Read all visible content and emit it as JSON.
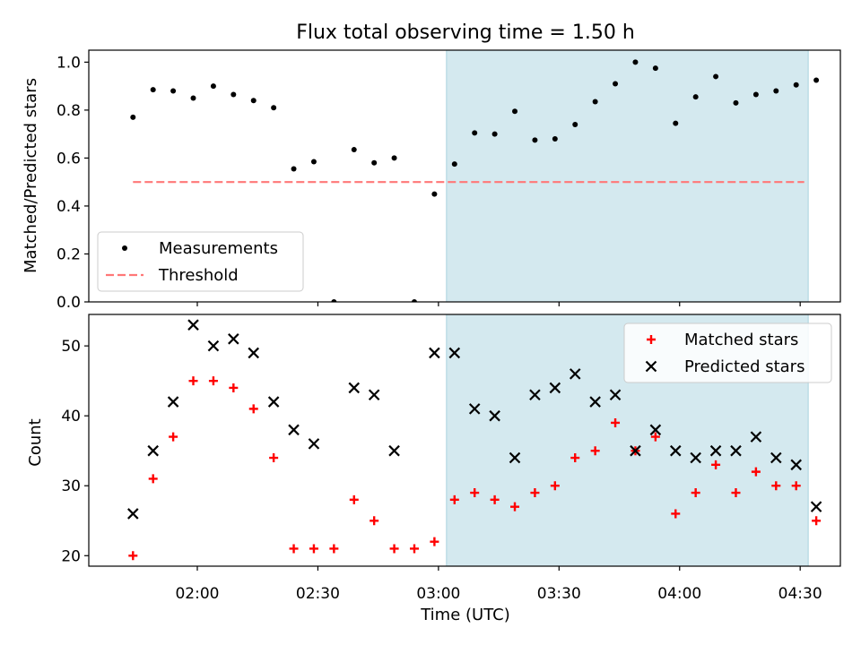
{
  "figure": {
    "title": "Flux total observing time = 1.50 h",
    "xlabel": "Time (UTC)",
    "x_tick_labels": [
      "02:00",
      "02:30",
      "03:00",
      "03:30",
      "04:00",
      "04:30"
    ]
  },
  "colors": {
    "measurement": "#000000",
    "threshold": "#ff7777",
    "matched": "#ff0000",
    "predicted": "#000000",
    "shaded_window": "#d4e9ef"
  },
  "chart_data": [
    {
      "type": "scatter",
      "ylabel": "Matched/Predicted stars",
      "xlim": [
        "01:33",
        "04:40"
      ],
      "ylim": [
        0,
        1.05
      ],
      "y_ticks": [
        "0.0",
        "0.2",
        "0.4",
        "0.6",
        "0.8",
        "1.0"
      ],
      "grid": false,
      "legend_position": "bottom-left",
      "shaded_region": {
        "x_start": "03:02",
        "x_end": "04:32"
      },
      "threshold": {
        "name": "Threshold",
        "value": 0.5,
        "x_start": "01:44",
        "x_end": "04:31"
      },
      "series": [
        {
          "name": "Measurements",
          "marker": "dot",
          "x": [
            "01:44",
            "01:49",
            "01:54",
            "01:59",
            "02:04",
            "02:09",
            "02:14",
            "02:19",
            "02:24",
            "02:29",
            "02:34",
            "02:39",
            "02:44",
            "02:49",
            "02:54",
            "02:59",
            "03:04",
            "03:09",
            "03:14",
            "03:19",
            "03:24",
            "03:29",
            "03:34",
            "03:39",
            "03:44",
            "03:49",
            "03:54",
            "03:59",
            "04:04",
            "04:09",
            "04:14",
            "04:19",
            "04:24",
            "04:29",
            "04:34"
          ],
          "y": [
            0.77,
            0.885,
            0.88,
            0.85,
            0.9,
            0.865,
            0.84,
            0.81,
            0.555,
            0.585,
            0.0,
            0.635,
            0.58,
            0.6,
            0.0,
            0.45,
            0.575,
            0.705,
            0.7,
            0.795,
            0.675,
            0.68,
            0.74,
            0.835,
            0.91,
            1.0,
            0.975,
            0.745,
            0.855,
            0.94,
            0.83,
            0.865,
            0.88,
            0.905,
            0.925
          ]
        }
      ]
    },
    {
      "type": "scatter",
      "ylabel": "Count",
      "xlim": [
        "01:33",
        "04:40"
      ],
      "ylim": [
        18.5,
        54.5
      ],
      "y_ticks": [
        "20",
        "30",
        "40",
        "50"
      ],
      "grid": false,
      "legend_position": "top-right",
      "shaded_region": {
        "x_start": "03:02",
        "x_end": "04:32"
      },
      "series": [
        {
          "name": "Matched stars",
          "marker": "plus",
          "x": [
            "01:44",
            "01:49",
            "01:54",
            "01:59",
            "02:04",
            "02:09",
            "02:14",
            "02:19",
            "02:24",
            "02:29",
            "02:34",
            "02:39",
            "02:44",
            "02:49",
            "02:54",
            "02:59",
            "03:04",
            "03:09",
            "03:14",
            "03:19",
            "03:24",
            "03:29",
            "03:34",
            "03:39",
            "03:44",
            "03:49",
            "03:54",
            "03:59",
            "04:04",
            "04:09",
            "04:14",
            "04:19",
            "04:24",
            "04:29",
            "04:34"
          ],
          "y": [
            20,
            31,
            37,
            45,
            45,
            44,
            41,
            34,
            21,
            21,
            21,
            28,
            25,
            21,
            21,
            22,
            28,
            29,
            28,
            27,
            29,
            30,
            34,
            35,
            39,
            35,
            37,
            26,
            29,
            33,
            29,
            32,
            30,
            30,
            25
          ]
        },
        {
          "name": "Predicted stars",
          "marker": "x",
          "x": [
            "01:44",
            "01:49",
            "01:54",
            "01:59",
            "02:04",
            "02:09",
            "02:14",
            "02:19",
            "02:24",
            "02:29",
            "02:39",
            "02:44",
            "02:49",
            "02:59",
            "03:04",
            "03:09",
            "03:14",
            "03:19",
            "03:24",
            "03:29",
            "03:34",
            "03:39",
            "03:44",
            "03:49",
            "03:54",
            "03:59",
            "04:04",
            "04:09",
            "04:14",
            "04:19",
            "04:24",
            "04:29",
            "04:34"
          ],
          "y": [
            26,
            35,
            42,
            53,
            50,
            51,
            49,
            42,
            38,
            36,
            44,
            43,
            35,
            49,
            49,
            41,
            40,
            34,
            43,
            44,
            46,
            42,
            43,
            35,
            38,
            35,
            34,
            35,
            35,
            37,
            34,
            33,
            27
          ]
        }
      ]
    }
  ]
}
